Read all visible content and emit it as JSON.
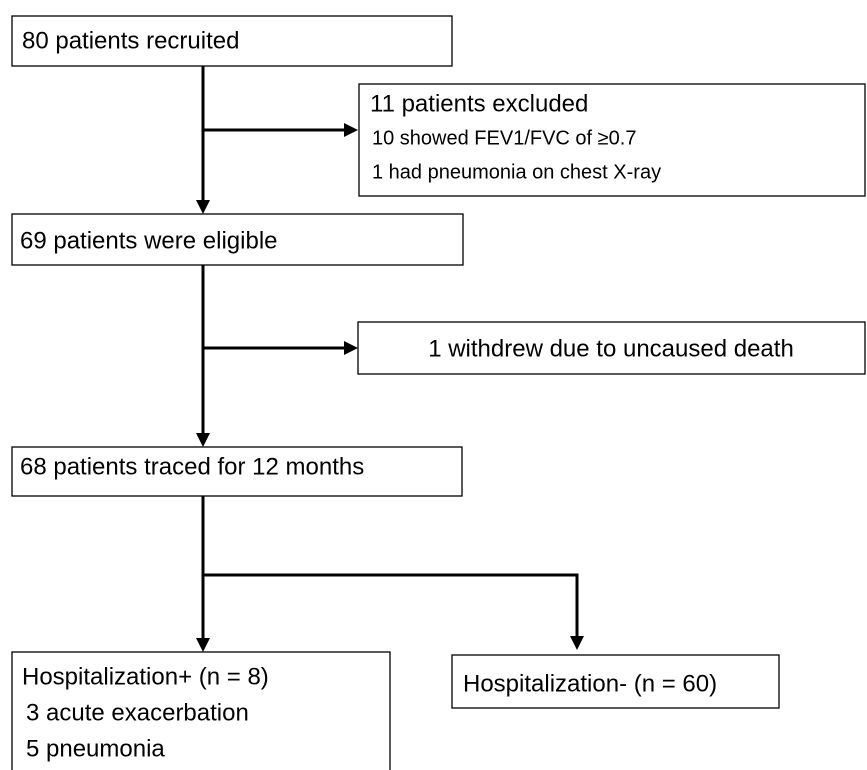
{
  "nodes": [
    {
      "lines": [
        "80 patients recruited"
      ]
    },
    {
      "lines": [
        "11 patients excluded",
        "10 showed FEV1/FVC of ≥0.7",
        "1 had pneumonia on chest X-ray"
      ]
    },
    {
      "lines": [
        "69 patients were eligible"
      ]
    },
    {
      "lines": [
        "1 withdrew due to uncaused death"
      ]
    },
    {
      "lines": [
        "68 patients traced for 12 months"
      ]
    },
    {
      "lines": [
        "Hospitalization+ (n = 8)",
        "3 acute exacerbation",
        "5 pneumonia"
      ]
    },
    {
      "lines": [
        "Hospitalization- (n = 60)"
      ]
    }
  ]
}
